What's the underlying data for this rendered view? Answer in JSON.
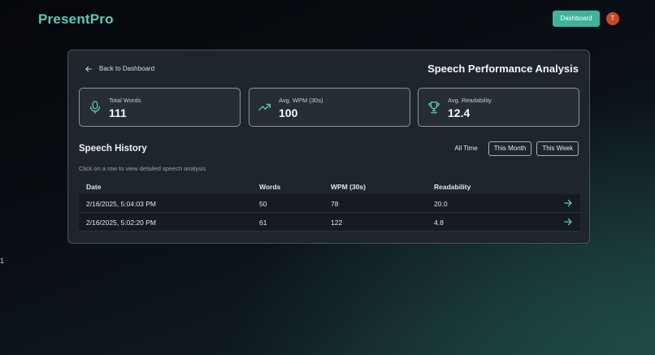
{
  "header": {
    "brand": "PresentPro",
    "dashboard_button": "Dashboard",
    "avatar_initial": "T"
  },
  "side_mark": "1",
  "card": {
    "back_label": "Back to Dashboard",
    "title": "Speech Performance Analysis",
    "stats": [
      {
        "icon": "microphone-icon",
        "label": "Total Words",
        "value": "111"
      },
      {
        "icon": "trending-up-icon",
        "label": "Avg. WPM (30s)",
        "value": "100"
      },
      {
        "icon": "trophy-icon",
        "label": "Avg. Readability",
        "value": "12.4"
      }
    ],
    "history": {
      "title": "Speech History",
      "hint": "Click on a row to view detailed speech analysis",
      "filters": [
        "All Time",
        "This Month",
        "This Week"
      ],
      "columns": [
        "Date",
        "Words",
        "WPM (30s)",
        "Readability"
      ],
      "rows": [
        {
          "date": "2/16/2025, 5:04:03 PM",
          "words": "50",
          "wpm": "78",
          "readability": "20.0"
        },
        {
          "date": "2/16/2025, 5:02:20 PM",
          "words": "61",
          "wpm": "122",
          "readability": "4.8"
        }
      ]
    }
  },
  "colors": {
    "accent": "#3fb39e",
    "brand": "#5ec9b6",
    "avatar": "#c8492a",
    "card_bg": "#1f252c"
  }
}
